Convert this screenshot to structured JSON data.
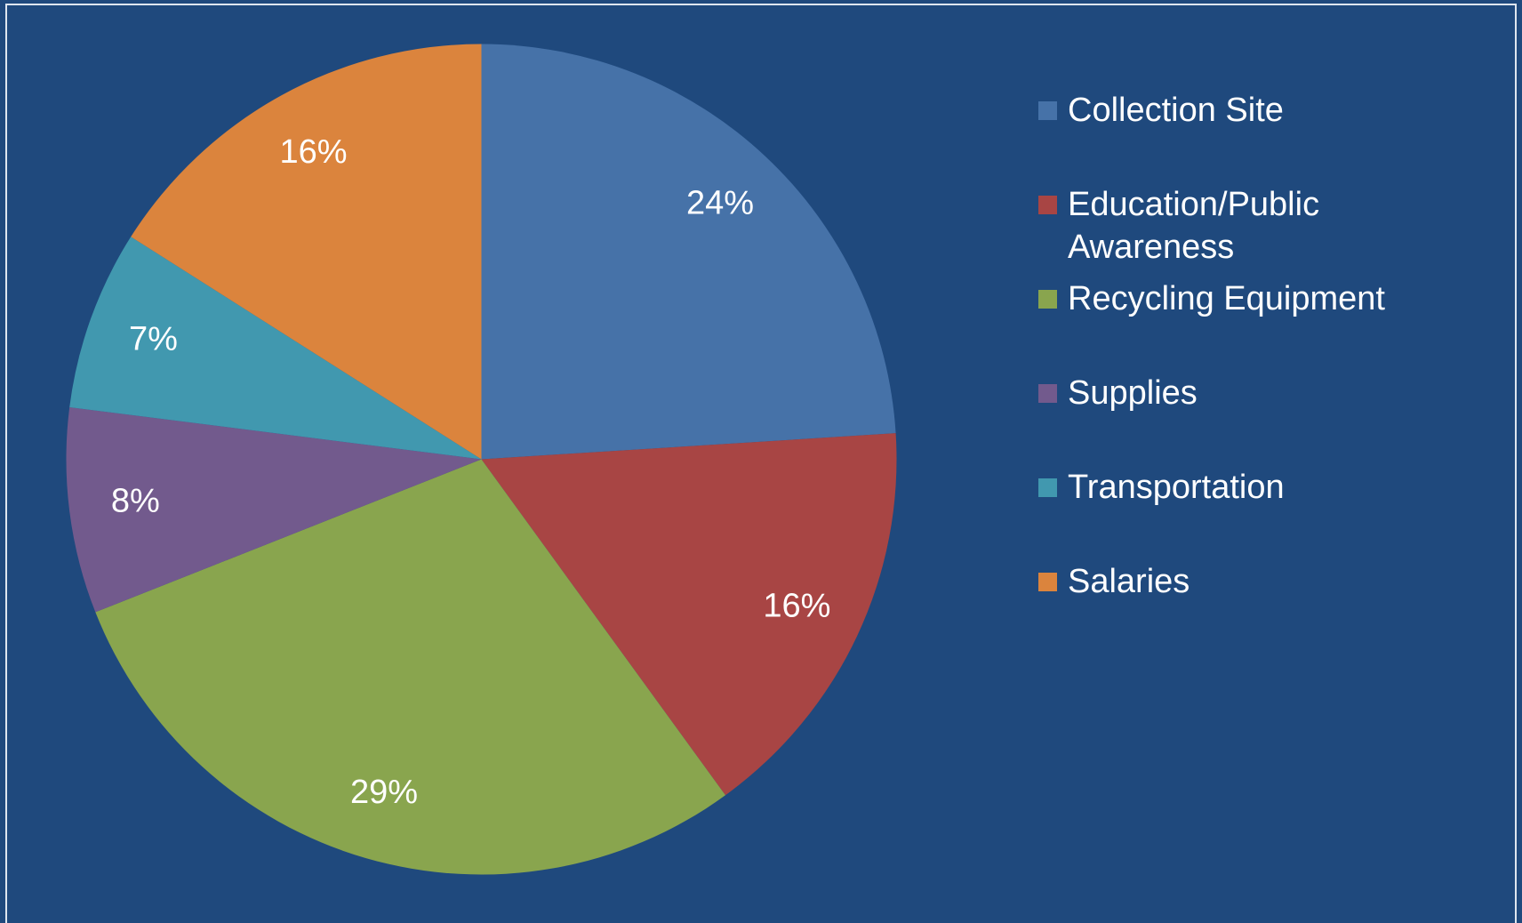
{
  "chart_data": {
    "type": "pie",
    "categories": [
      "Collection Site",
      "Education/Public Awareness",
      "Recycling Equipment",
      "Supplies",
      "Transportation",
      "Salaries"
    ],
    "values": [
      24,
      16,
      29,
      8,
      7,
      16
    ],
    "value_labels": [
      "24%",
      "16%",
      "29%",
      "8%",
      "7%",
      "16%"
    ],
    "colors": [
      "#4672a8",
      "#a84544",
      "#89a54e",
      "#725a8d",
      "#4198af",
      "#db843d"
    ],
    "legend": "right"
  }
}
